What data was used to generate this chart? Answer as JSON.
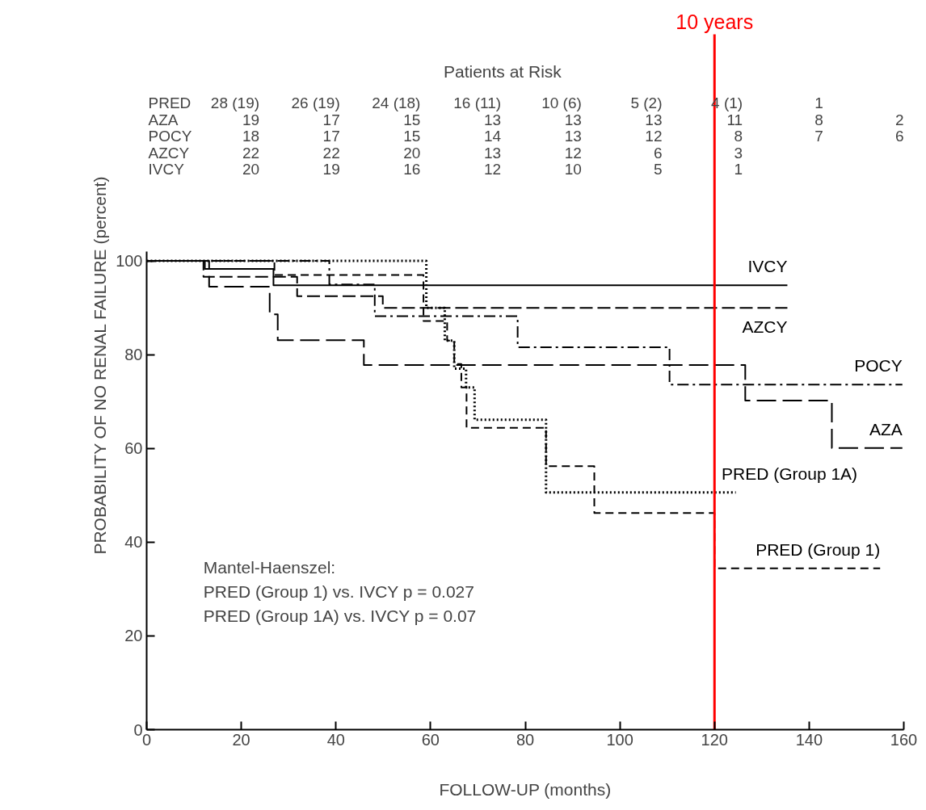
{
  "chart_data": {
    "type": "step",
    "xlabel": "FOLLOW-UP (months)",
    "ylabel": "PROBABILITY OF NO RENAL FAILURE (percent)",
    "xlim": [
      0,
      160
    ],
    "ylim": [
      0,
      102
    ],
    "xticks": [
      0,
      20,
      40,
      60,
      80,
      100,
      120,
      140,
      160
    ],
    "yticks": [
      0,
      20,
      40,
      60,
      80,
      100
    ],
    "grid": false,
    "legend": false,
    "marker": "none",
    "series": [
      {
        "name": "IVCY",
        "color": "#000000",
        "line_style": "solid",
        "x": [
          0,
          12.3,
          26.8,
          135.4
        ],
        "values": [
          100,
          98.3,
          94.8,
          94.8
        ]
      },
      {
        "name": "AZCY",
        "color": "#000000",
        "line_style": "dashed",
        "x": [
          0,
          12,
          31.8,
          49.9,
          135.4
        ],
        "values": [
          100,
          96.6,
          92.5,
          90,
          90
        ]
      },
      {
        "name": "POCY",
        "color": "#000000",
        "line_style": "dashed",
        "x": [
          0,
          38.6,
          48.2,
          78.4,
          110.5,
          159.7
        ],
        "values": [
          100,
          95,
          88.2,
          81.6,
          73.6,
          73.6
        ]
      },
      {
        "name": "AZA",
        "color": "#000000",
        "line_style": "dashed",
        "x": [
          0,
          13.2,
          26,
          27.7,
          45.9,
          126.5,
          144.8,
          159.7
        ],
        "values": [
          100,
          94.5,
          88.6,
          83.1,
          77.8,
          70.2,
          60.1,
          60.1
        ]
      },
      {
        "name": "PRED (Group 1A)",
        "color": "#000000",
        "line_style": "dotted",
        "x": [
          0,
          59.1,
          63,
          65,
          67.5,
          69.3,
          84.4,
          124.5
        ],
        "values": [
          100,
          90,
          83,
          77,
          73,
          66.1,
          50.6,
          50.6
        ]
      },
      {
        "name": "PRED (Group 1)",
        "color": "#000000",
        "line_style": "dashed",
        "x": [
          0,
          27,
          58.5,
          63.5,
          65,
          66.5,
          67.6,
          84.4,
          94.6,
          120,
          155
        ],
        "values": [
          100,
          97,
          87.2,
          83,
          78,
          73,
          64.4,
          56.2,
          46.2,
          34.4,
          34.4
        ]
      }
    ],
    "ref_lines": [
      {
        "axis": "x",
        "value": 120,
        "label": "10 years",
        "color": "#ff0000"
      }
    ],
    "annotations": [
      "Patients at Risk",
      "PRED\t28 (19)\t26 (19)\t24 (18)\t16 (11)\t10 (6)\t5 (2)\t4 (1)\t1",
      "AZA\t19\t17\t15\t13\t13\t13\t11\t8\t2",
      "POCY\t18\t17\t15\t14\t13\t12\t8\t7\t6",
      "AZCY\t22\t22\t20\t13\t12\t6\t3",
      "IVCY\t20\t19\t16\t12\t10\t5\t1",
      "Mantel-Haenszel:",
      "PRED (Group 1) vs. IVCY p = 0.027",
      "PRED (Group 1A) vs. IVCY p = 0.07"
    ]
  }
}
